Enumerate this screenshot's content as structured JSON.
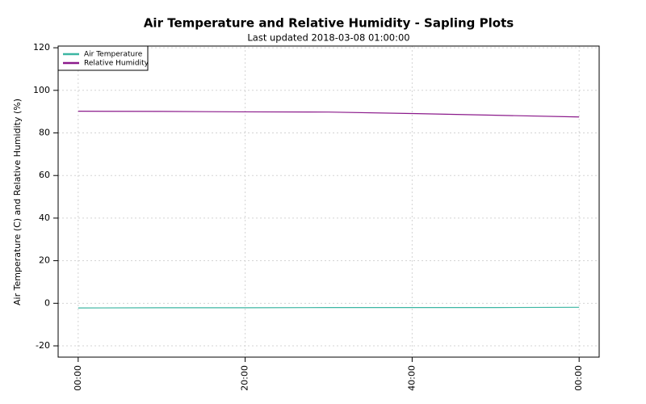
{
  "chart_data": {
    "type": "line",
    "title": "Air Temperature and Relative Humidity - Sapling Plots",
    "subtitle": "Last updated 2018-03-08 01:00:00",
    "y_label": "Air Temperature (C) and Relative Humidity (%)",
    "x": [
      0,
      10,
      20,
      30,
      40,
      50,
      60
    ],
    "series": [
      {
        "name": "Air Temperature",
        "color": "#3cb6a2",
        "values": [
          -2.2,
          -2.1,
          -2.1,
          -2.0,
          -2.0,
          -2.0,
          -1.9
        ]
      },
      {
        "name": "Relative Humidity",
        "color": "#8b1a8b",
        "values": [
          90.2,
          90.1,
          89.9,
          89.8,
          89.1,
          88.3,
          87.5
        ]
      }
    ],
    "xlim": [
      -2.4,
      62.4
    ],
    "xticks": [
      {
        "value": 0,
        "label": "00:00"
      },
      {
        "value": 20,
        "label": "20:00"
      },
      {
        "value": 40,
        "label": "40:00"
      },
      {
        "value": 60,
        "label": "00:00"
      }
    ],
    "ylim": [
      -25.3,
      120.8
    ],
    "yticks": [
      -20,
      0,
      20,
      40,
      60,
      80,
      100,
      120
    ],
    "grid": true,
    "legend": "top-left"
  }
}
